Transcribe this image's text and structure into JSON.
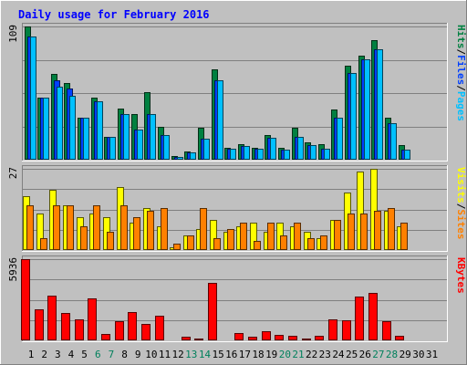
{
  "title": "Daily usage for February 2016",
  "colors": {
    "background": "#c0c0c0",
    "frame_dark": "#808080",
    "frame_light": "#ffffff",
    "title_text": "#0000ff",
    "hits": "#008040",
    "files": "#0040ff",
    "pages": "#00c0ff",
    "visits": "#ffff00",
    "sites": "#ff8000",
    "kbytes": "#ff0000",
    "weekend_label": "#00805c",
    "weekday_label": "#000080"
  },
  "chart_data": [
    {
      "type": "bar",
      "name": "hits-files-pages",
      "ymax_label": "109",
      "ymax": 109,
      "axis_legend": [
        {
          "text": "Hits",
          "color": "#008040"
        },
        {
          "text": "/",
          "color": "#000000"
        },
        {
          "text": "Files",
          "color": "#0040ff"
        },
        {
          "text": "/",
          "color": "#000000"
        },
        {
          "text": "Pages",
          "color": "#00c0ff"
        }
      ],
      "series": [
        {
          "name": "Hits",
          "color": "#008040",
          "values": [
            109,
            51,
            70,
            63,
            34,
            51,
            19,
            42,
            37,
            55,
            27,
            3,
            7,
            26,
            74,
            10,
            13,
            10,
            20,
            10,
            26,
            14,
            13,
            41,
            77,
            85,
            98,
            34,
            12,
            0,
            0
          ]
        },
        {
          "name": "Files",
          "color": "#0040ff",
          "values": [
            101,
            51,
            65,
            58,
            34,
            48,
            19,
            37,
            25,
            37,
            20,
            2,
            6,
            17,
            65,
            9,
            11,
            9,
            18,
            8,
            19,
            12,
            9,
            34,
            71,
            82,
            90,
            30,
            8,
            0,
            0
          ]
        },
        {
          "name": "Pages",
          "color": "#00c0ff",
          "values": [
            101,
            51,
            60,
            52,
            34,
            48,
            19,
            37,
            25,
            37,
            20,
            2,
            6,
            17,
            65,
            9,
            11,
            9,
            18,
            8,
            19,
            12,
            9,
            34,
            71,
            82,
            90,
            30,
            8,
            0,
            0
          ]
        }
      ]
    },
    {
      "type": "bar",
      "name": "visits-sites",
      "ymax_label": "27",
      "ymax": 27,
      "axis_legend": [
        {
          "text": "Visits",
          "color": "#ffff00"
        },
        {
          "text": "/",
          "color": "#000000"
        },
        {
          "text": "Sites",
          "color": "#ff8000"
        }
      ],
      "series": [
        {
          "name": "Visits",
          "color": "#ffff00",
          "values": [
            18,
            12,
            20,
            15,
            11,
            12,
            11,
            21,
            9,
            14,
            8,
            1,
            5,
            7,
            10,
            6,
            8,
            9,
            6,
            9,
            8,
            6,
            4,
            10,
            19,
            26,
            27,
            13,
            8,
            0,
            0
          ]
        },
        {
          "name": "Sites",
          "color": "#ff8000",
          "values": [
            15,
            4,
            15,
            15,
            8,
            15,
            6,
            15,
            11,
            13,
            14,
            2,
            5,
            14,
            4,
            7,
            9,
            3,
            9,
            5,
            9,
            4,
            5,
            10,
            12,
            12,
            13,
            14,
            9,
            0,
            0
          ]
        }
      ]
    },
    {
      "type": "bar",
      "name": "kbytes",
      "ymax_label": "5936",
      "ymax": 5936,
      "axis_legend": [
        {
          "text": "KBytes",
          "color": "#ff0000"
        }
      ],
      "series": [
        {
          "name": "KBytes",
          "color": "#ff0000",
          "values": [
            5936,
            2300,
            3250,
            2000,
            1550,
            3050,
            490,
            1400,
            2100,
            1200,
            1800,
            80,
            250,
            150,
            4200,
            70,
            550,
            250,
            700,
            420,
            350,
            130,
            350,
            1550,
            1500,
            3200,
            3500,
            1400,
            310,
            0,
            0
          ]
        }
      ]
    }
  ],
  "x_labels": [
    "1",
    "2",
    "3",
    "4",
    "5",
    "6",
    "7",
    "8",
    "9",
    "10",
    "11",
    "12",
    "13",
    "14",
    "15",
    "16",
    "17",
    "18",
    "19",
    "20",
    "21",
    "22",
    "23",
    "24",
    "25",
    "26",
    "27",
    "28",
    "29",
    "30",
    "31"
  ],
  "weekend_days": [
    6,
    7,
    13,
    14,
    20,
    21,
    27,
    28
  ]
}
